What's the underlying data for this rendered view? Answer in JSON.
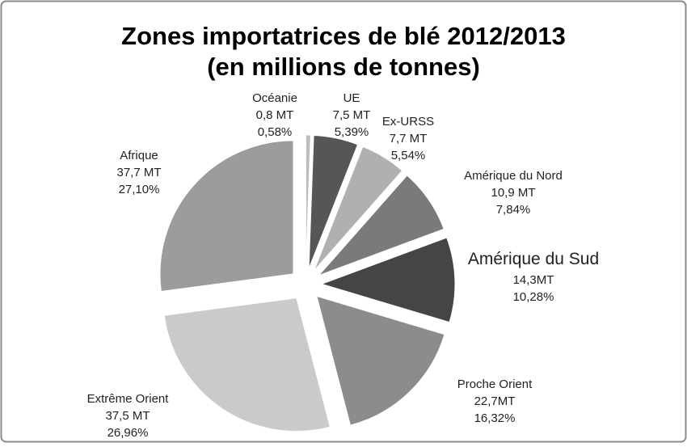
{
  "chart_data": {
    "type": "pie",
    "title": "Zones importatrices de blé 2012/2013",
    "subtitle": "(en millions de tonnes)",
    "categories": [
      "Océanie",
      "UE",
      "Ex-URSS",
      "Amérique du Nord",
      "Amérique du Sud",
      "Proche Orient",
      "Extrême Orient",
      "Afrique"
    ],
    "tonnage_labels": [
      "0,8 MT",
      "7,5 MT",
      "7,7 MT",
      "10,9 MT",
      "14,3MT",
      "22,7MT",
      "37,5 MT",
      "37,7 MT"
    ],
    "values": [
      0.58,
      5.39,
      5.54,
      7.84,
      10.28,
      16.32,
      26.96,
      27.1
    ],
    "value_labels": [
      "0,58%",
      "5,39%",
      "5,54%",
      "7,84%",
      "10,28%",
      "16,32%",
      "26,96%",
      "27,10%"
    ],
    "colors": [
      "#bdbdbd",
      "#565656",
      "#b0b0b0",
      "#7a7a7a",
      "#454545",
      "#8c8c8c",
      "#cacaca",
      "#9c9c9c"
    ]
  }
}
